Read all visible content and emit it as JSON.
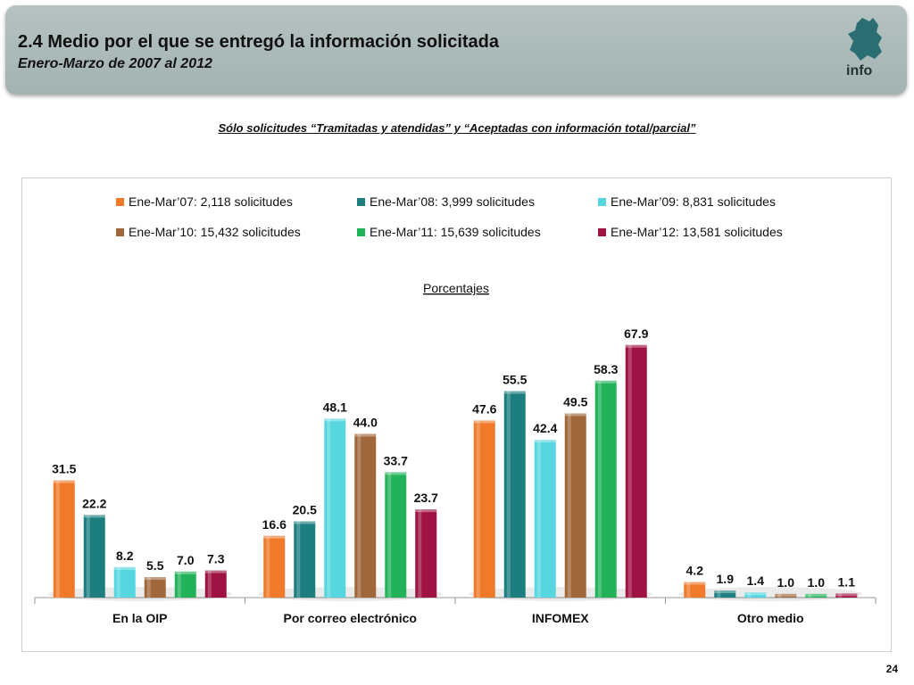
{
  "header": {
    "title": "2.4 Medio por el que se entregó la información solicitada",
    "subtitle": "Enero-Marzo de 2007 al 2012",
    "logo_text": "info"
  },
  "note": "Sólo solicitudes “Tramitadas y atendidas” y “Aceptadas con información total/parcial”",
  "page_number": "24",
  "chart_data": {
    "type": "bar",
    "title": "Porcentajes",
    "categories": [
      "En la OIP",
      "Por correo electrónico",
      "INFOMEX",
      "Otro medio"
    ],
    "series": [
      {
        "name": "Ene-Mar’07: 2,118 solicitudes",
        "color": "#f07a2a",
        "values": [
          31.5,
          16.6,
          47.6,
          4.2
        ]
      },
      {
        "name": "Ene-Mar’08: 3,999 solicitudes",
        "color": "#1d7e80",
        "values": [
          22.2,
          20.5,
          55.5,
          1.9
        ]
      },
      {
        "name": "Ene-Mar’09: 8,831 solicitudes",
        "color": "#56d7df",
        "values": [
          8.2,
          48.1,
          42.4,
          1.4
        ]
      },
      {
        "name": "Ene-Mar’10: 15,432 solicitudes",
        "color": "#a0683a",
        "values": [
          5.5,
          44.0,
          49.5,
          1.0
        ]
      },
      {
        "name": "Ene-Mar’11: 15,639 solicitudes",
        "color": "#22b35a",
        "values": [
          7.0,
          33.7,
          58.3,
          1.0
        ]
      },
      {
        "name": "Ene-Mar’12: 13,581 solicitudes",
        "color": "#9e1343",
        "values": [
          7.3,
          23.7,
          67.9,
          1.1
        ]
      }
    ],
    "legend_position": "top",
    "ylim": [
      0,
      70
    ],
    "grid": false
  }
}
